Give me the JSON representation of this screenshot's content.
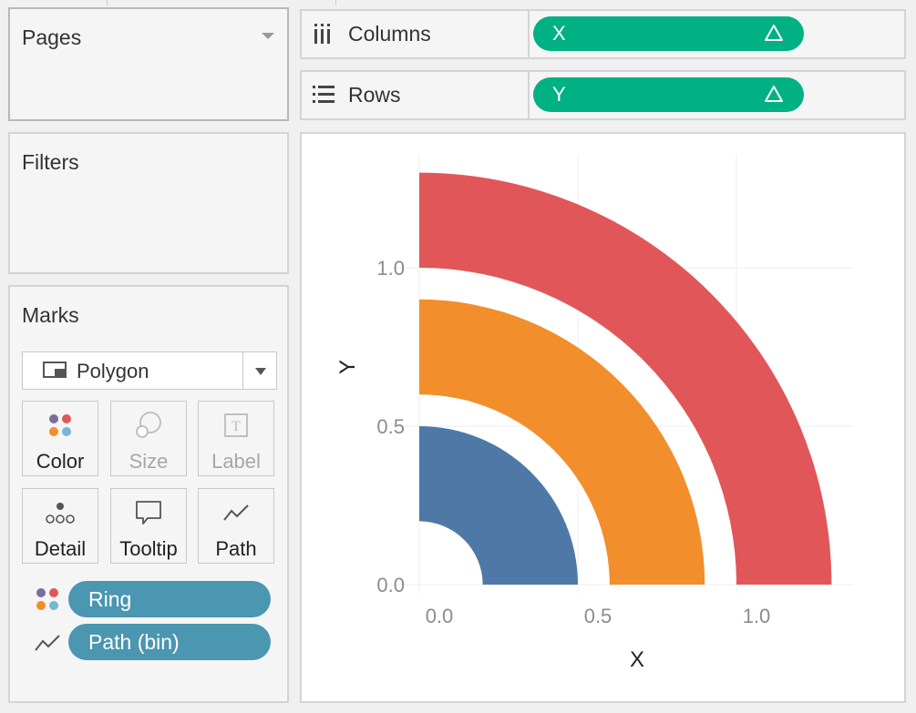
{
  "pages": {
    "title": "Pages"
  },
  "filters": {
    "title": "Filters"
  },
  "marks": {
    "title": "Marks",
    "mark_type": "Polygon",
    "buttons": {
      "color": "Color",
      "size": "Size",
      "label": "Label",
      "detail": "Detail",
      "tooltip": "Tooltip",
      "path": "Path"
    },
    "fields": [
      {
        "label": "Ring",
        "encoding": "color-icon"
      },
      {
        "label": "Path (bin)",
        "encoding": "path-icon"
      }
    ]
  },
  "shelves": {
    "columns": {
      "label": "Columns",
      "pill": "X"
    },
    "rows": {
      "label": "Rows",
      "pill": "Y"
    }
  },
  "colors": {
    "ring1": "#4e79a7",
    "ring2": "#f28e2b",
    "ring3": "#e15759",
    "pill_green": "#00b184",
    "pill_blue": "#4b96b1"
  },
  "chart_data": {
    "type": "area",
    "xlabel": "X",
    "ylabel": "Y",
    "xlim": [
      -0.05,
      1.37
    ],
    "ylim": [
      -0.05,
      1.37
    ],
    "xticks": [
      "0.0",
      "0.5",
      "1.0"
    ],
    "yticks": [
      "0.0",
      "0.5",
      "1.0"
    ],
    "grid": true,
    "series": [
      {
        "inner_radius": 0.2,
        "outer_radius": 0.5,
        "color": "#4e79a7"
      },
      {
        "inner_radius": 0.6,
        "outer_radius": 0.9,
        "color": "#f28e2b"
      },
      {
        "inner_radius": 1.0,
        "outer_radius": 1.3,
        "color": "#e15759"
      }
    ]
  }
}
